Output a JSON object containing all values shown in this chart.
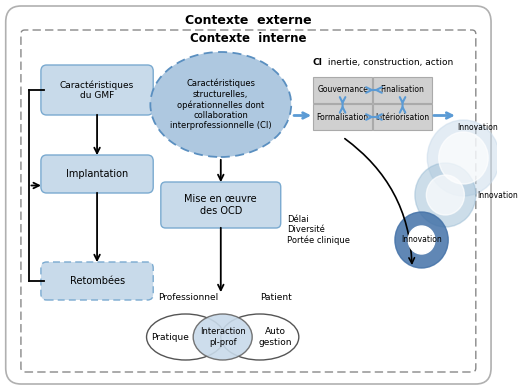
{
  "title_externe": "Contexte  externe",
  "title_interne": "Contexte  interne",
  "ci_label_bold": "CI",
  "ci_label_rest": " inertie, construction, action",
  "box_gmf_text": "Caractéristiques\ndu GMF",
  "box_implantation_text": "Implantation",
  "box_retombees_text": "Retombées",
  "ellipse_center_text": "Caractéristiques\nstructurelles,\nopérationnelles dont\ncollaboration\ninterprofessionnelle (CI)",
  "box_ocd_text": "Mise en œuvre\ndes OCD",
  "grid_boxes": [
    "Gouvernance",
    "Finalisation",
    "Formalisation",
    "Intériorisation"
  ],
  "innovation_labels": [
    "Innovation",
    "Innovation",
    "Innovation"
  ],
  "delay_text": "Délai\nDiversité\nPortée clinique",
  "professionnel_label": "Professionnel",
  "patient_label": "Patient",
  "ellipse_left_text": "Pratique",
  "ellipse_center_bottom_text": "Interaction\npl-prof",
  "ellipse_right_text": "Auto\ngestion",
  "color_blue_light": "#c8daea",
  "color_blue_medium": "#4472a8",
  "color_blue_ellipse_fill": "#aec8e0",
  "color_blue_ellipse_stroke": "#5a8fc0",
  "color_gray_box": "#c8c8c8",
  "color_dashed_border": "#888888",
  "color_white": "#ffffff",
  "color_black": "#000000",
  "color_dark_blue": "#2e6699",
  "color_arrow_blue": "#5b9bd5"
}
